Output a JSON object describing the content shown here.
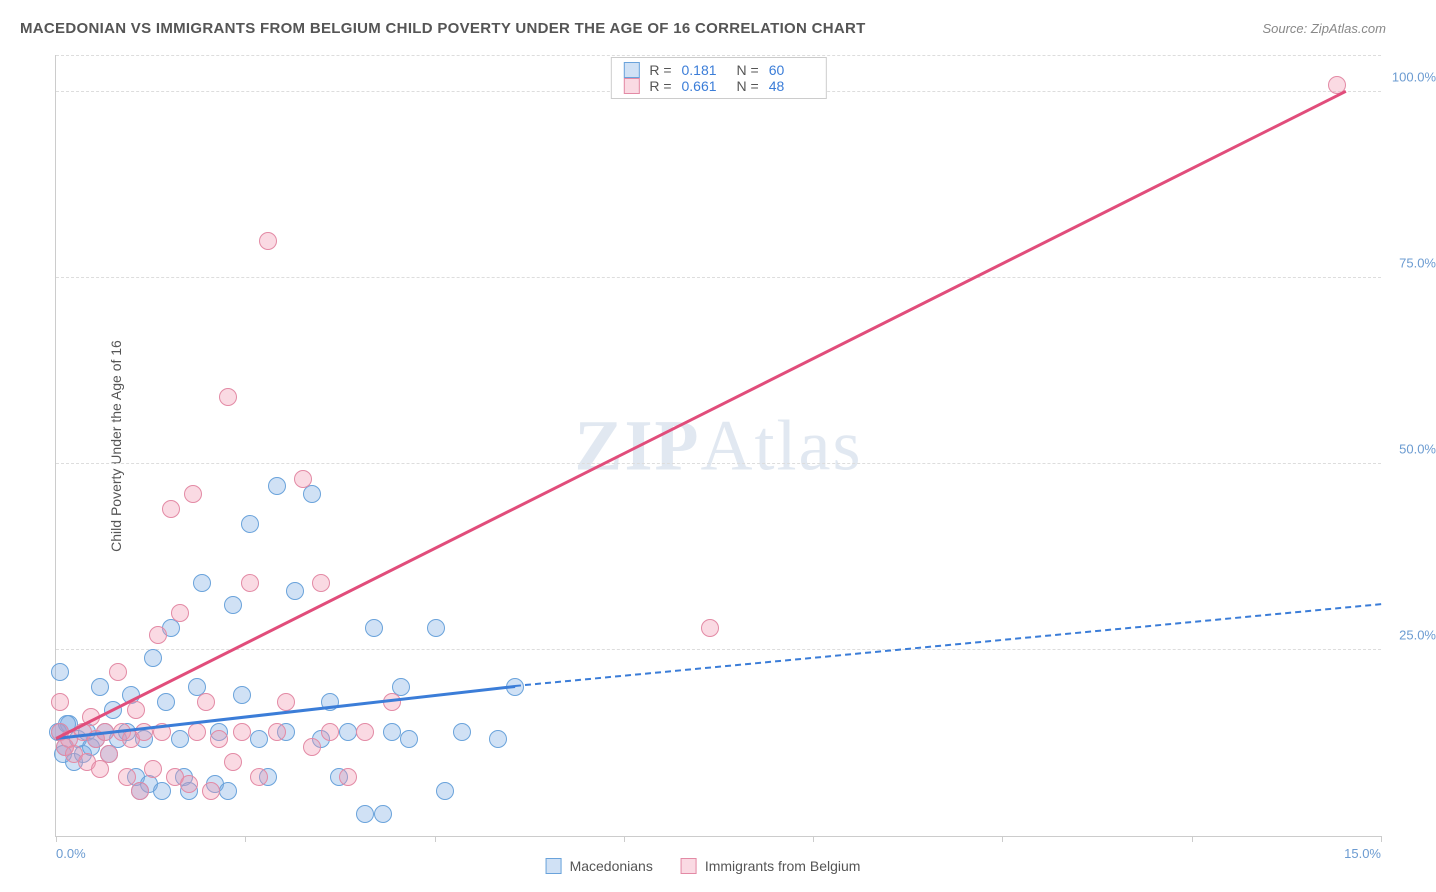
{
  "title": "MACEDONIAN VS IMMIGRANTS FROM BELGIUM CHILD POVERTY UNDER THE AGE OF 16 CORRELATION CHART",
  "source_label": "Source: ",
  "source_value": "ZipAtlas.com",
  "y_axis_label": "Child Poverty Under the Age of 16",
  "watermark": {
    "part1": "ZIP",
    "part2": "Atlas"
  },
  "chart": {
    "type": "scatter",
    "xlim": [
      0,
      15
    ],
    "ylim": [
      0,
      105
    ],
    "y_ticks": [
      25,
      50,
      75,
      100
    ],
    "y_tick_labels": [
      "25.0%",
      "50.0%",
      "75.0%",
      "100.0%"
    ],
    "x_ticks": [
      0,
      2.14,
      4.29,
      6.43,
      8.57,
      10.71,
      12.86,
      15
    ],
    "x_tick_labels_shown": {
      "first": "0.0%",
      "last": "15.0%"
    },
    "grid_color": "#dddddd",
    "axis_color": "#cccccc",
    "background_color": "#ffffff",
    "tick_label_color": "#6b9bd1",
    "series": [
      {
        "name": "Macedonians",
        "color_fill": "rgba(120,170,225,0.35)",
        "color_stroke": "#6aa3db",
        "trend_color": "#3b7dd8",
        "r_value": "0.181",
        "n_value": "60",
        "trend": {
          "x1": 0,
          "y1": 13,
          "x2": 5.2,
          "y2": 20,
          "dash_to_x": 15,
          "dash_to_y": 31
        },
        "marker_radius": 9,
        "points": [
          [
            0.05,
            14
          ],
          [
            0.1,
            12
          ],
          [
            0.15,
            15
          ],
          [
            0.2,
            10
          ],
          [
            0.25,
            13
          ],
          [
            0.3,
            11
          ],
          [
            0.35,
            14
          ],
          [
            0.4,
            12
          ],
          [
            0.45,
            13
          ],
          [
            0.5,
            20
          ],
          [
            0.55,
            14
          ],
          [
            0.6,
            11
          ],
          [
            0.65,
            17
          ],
          [
            0.7,
            13
          ],
          [
            0.8,
            14
          ],
          [
            0.85,
            19
          ],
          [
            0.9,
            8
          ],
          [
            0.95,
            6
          ],
          [
            1.0,
            13
          ],
          [
            1.05,
            7
          ],
          [
            1.1,
            24
          ],
          [
            1.2,
            6
          ],
          [
            1.25,
            18
          ],
          [
            1.3,
            28
          ],
          [
            1.4,
            13
          ],
          [
            1.45,
            8
          ],
          [
            1.5,
            6
          ],
          [
            1.6,
            20
          ],
          [
            1.65,
            34
          ],
          [
            1.8,
            7
          ],
          [
            1.85,
            14
          ],
          [
            1.95,
            6
          ],
          [
            2.0,
            31
          ],
          [
            2.1,
            19
          ],
          [
            2.2,
            42
          ],
          [
            2.3,
            13
          ],
          [
            2.4,
            8
          ],
          [
            2.5,
            47
          ],
          [
            2.6,
            14
          ],
          [
            2.7,
            33
          ],
          [
            2.9,
            46
          ],
          [
            3.0,
            13
          ],
          [
            3.1,
            18
          ],
          [
            3.2,
            8
          ],
          [
            3.3,
            14
          ],
          [
            3.5,
            3
          ],
          [
            3.6,
            28
          ],
          [
            3.7,
            3
          ],
          [
            3.8,
            14
          ],
          [
            3.9,
            20
          ],
          [
            4.0,
            13
          ],
          [
            4.3,
            28
          ],
          [
            4.4,
            6
          ],
          [
            4.6,
            14
          ],
          [
            5.0,
            13
          ],
          [
            5.2,
            20
          ],
          [
            0.05,
            22
          ],
          [
            0.02,
            14
          ],
          [
            0.08,
            11
          ],
          [
            0.12,
            15
          ]
        ]
      },
      {
        "name": "Immigrants from Belgium",
        "color_fill": "rgba(240,150,175,0.35)",
        "color_stroke": "#e38aa5",
        "trend_color": "#e14d7b",
        "r_value": "0.661",
        "n_value": "48",
        "trend": {
          "x1": 0,
          "y1": 13,
          "x2": 14.6,
          "y2": 100
        },
        "marker_radius": 9,
        "points": [
          [
            0.05,
            14
          ],
          [
            0.1,
            12
          ],
          [
            0.15,
            13
          ],
          [
            0.2,
            11
          ],
          [
            0.3,
            14
          ],
          [
            0.35,
            10
          ],
          [
            0.4,
            16
          ],
          [
            0.45,
            13
          ],
          [
            0.5,
            9
          ],
          [
            0.55,
            14
          ],
          [
            0.6,
            11
          ],
          [
            0.7,
            22
          ],
          [
            0.75,
            14
          ],
          [
            0.8,
            8
          ],
          [
            0.85,
            13
          ],
          [
            0.9,
            17
          ],
          [
            0.95,
            6
          ],
          [
            1.0,
            14
          ],
          [
            1.1,
            9
          ],
          [
            1.15,
            27
          ],
          [
            1.2,
            14
          ],
          [
            1.3,
            44
          ],
          [
            1.35,
            8
          ],
          [
            1.4,
            30
          ],
          [
            1.5,
            7
          ],
          [
            1.55,
            46
          ],
          [
            1.6,
            14
          ],
          [
            1.7,
            18
          ],
          [
            1.75,
            6
          ],
          [
            1.85,
            13
          ],
          [
            1.95,
            59
          ],
          [
            2.0,
            10
          ],
          [
            2.1,
            14
          ],
          [
            2.2,
            34
          ],
          [
            2.3,
            8
          ],
          [
            2.4,
            80
          ],
          [
            2.5,
            14
          ],
          [
            2.6,
            18
          ],
          [
            2.8,
            48
          ],
          [
            2.9,
            12
          ],
          [
            3.0,
            34
          ],
          [
            3.1,
            14
          ],
          [
            3.3,
            8
          ],
          [
            3.5,
            14
          ],
          [
            3.8,
            18
          ],
          [
            7.4,
            28
          ],
          [
            14.5,
            101
          ],
          [
            0.05,
            18
          ]
        ]
      }
    ]
  },
  "legend_top": {
    "r_label": "R  =",
    "n_label": "N  ="
  },
  "legend_bottom": {
    "items": [
      "Macedonians",
      "Immigrants from Belgium"
    ]
  }
}
